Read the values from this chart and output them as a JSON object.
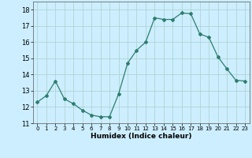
{
  "x": [
    0,
    1,
    2,
    3,
    4,
    5,
    6,
    7,
    8,
    9,
    10,
    11,
    12,
    13,
    14,
    15,
    16,
    17,
    18,
    19,
    20,
    21,
    22,
    23
  ],
  "y": [
    12.3,
    12.7,
    13.6,
    12.5,
    12.2,
    11.8,
    11.5,
    11.4,
    11.4,
    12.8,
    14.7,
    15.5,
    16.0,
    17.5,
    17.4,
    17.4,
    17.8,
    17.75,
    16.5,
    16.3,
    15.1,
    14.35,
    13.65,
    13.6
  ],
  "line_color": "#2e7d6e",
  "marker": "D",
  "marker_size": 2,
  "bg_color": "#cceeff",
  "grid_color": "#b0d4d4",
  "xlabel": "Humidex (Indice chaleur)",
  "ylim": [
    11,
    18.5
  ],
  "xlim": [
    -0.5,
    23.5
  ],
  "yticks": [
    11,
    12,
    13,
    14,
    15,
    16,
    17,
    18
  ],
  "xticks": [
    0,
    1,
    2,
    3,
    4,
    5,
    6,
    7,
    8,
    9,
    10,
    11,
    12,
    13,
    14,
    15,
    16,
    17,
    18,
    19,
    20,
    21,
    22,
    23
  ],
  "xtick_labels": [
    "0",
    "1",
    "2",
    "3",
    "4",
    "5",
    "6",
    "7",
    "8",
    "9",
    "10",
    "11",
    "12",
    "13",
    "14",
    "15",
    "16",
    "17",
    "18",
    "19",
    "20",
    "21",
    "22",
    "23"
  ]
}
